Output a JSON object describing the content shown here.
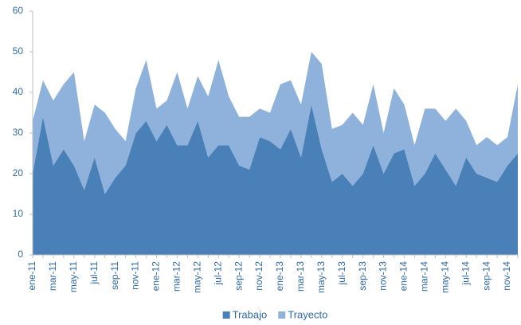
{
  "chart_data": {
    "type": "stacked_area",
    "categories": [
      "ene-11",
      null,
      "mar-11",
      null,
      "may-11",
      null,
      "jul-11",
      null,
      "sep-11",
      null,
      "nov-11",
      null,
      "ene-12",
      null,
      "mar-12",
      null,
      "may-12",
      null,
      "jul-12",
      null,
      "sep-12",
      null,
      "nov-12",
      null,
      "ene-13",
      null,
      "mar-13",
      null,
      "may-13",
      null,
      "jul-13",
      null,
      "sep-13",
      null,
      "nov-13",
      null,
      "ene-14",
      null,
      "mar-14",
      null,
      "may-14",
      null,
      "jul-14",
      null,
      "sep-14",
      null,
      "nov-14",
      null
    ],
    "series": [
      {
        "name": "Trabajo",
        "color": "#4a80b8",
        "values": [
          20,
          34,
          22,
          26,
          22,
          16,
          24,
          15,
          19,
          22,
          30,
          33,
          28,
          32,
          27,
          27,
          33,
          24,
          27,
          27,
          22,
          21,
          29,
          28,
          26,
          31,
          24,
          37,
          26,
          18,
          20,
          17,
          20,
          27,
          20,
          25,
          26,
          17,
          20,
          25,
          21,
          17,
          24,
          20,
          19,
          18,
          22,
          25
        ]
      },
      {
        "name": "Trayecto",
        "color": "#8fb2dc",
        "values": [
          13,
          9,
          16,
          16,
          23,
          12,
          13,
          20,
          12,
          6,
          11,
          15,
          8,
          6,
          18,
          9,
          11,
          15,
          21,
          12,
          12,
          13,
          7,
          7,
          16,
          12,
          13,
          13,
          21,
          13,
          12,
          18,
          12,
          15,
          10,
          16,
          11,
          10,
          16,
          11,
          12,
          19,
          9,
          7,
          10,
          9,
          7,
          17
        ]
      }
    ],
    "ylim": [
      0,
      60
    ],
    "yticks": [
      0,
      10,
      20,
      30,
      40,
      50,
      60
    ],
    "legend": "bottom"
  }
}
